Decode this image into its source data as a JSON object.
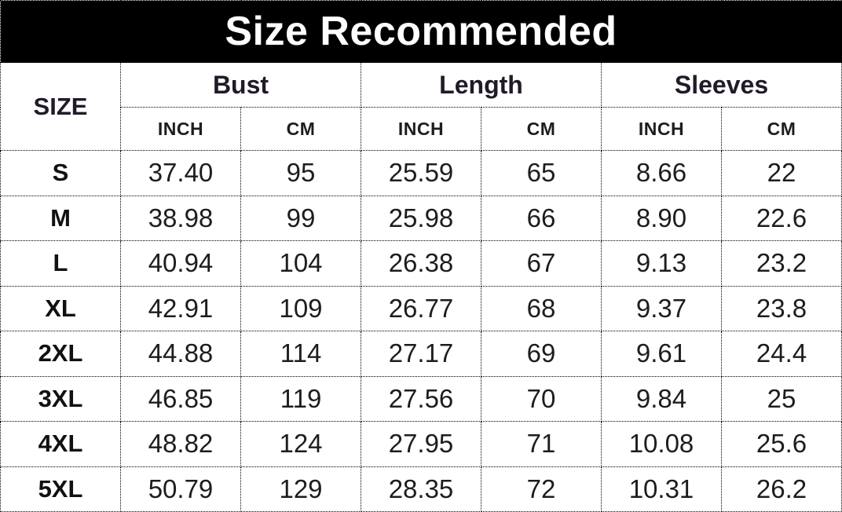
{
  "title": "Size Recommended",
  "header": {
    "size": "SIZE",
    "groups": [
      "Bust",
      "Length",
      "Sleeves"
    ],
    "units": [
      "INCH",
      "CM",
      "INCH",
      "CM",
      "INCH",
      "CM"
    ]
  },
  "chart_data": {
    "type": "table",
    "title": "Size Recommended",
    "columns": [
      "SIZE",
      "Bust INCH",
      "Bust CM",
      "Length INCH",
      "Length CM",
      "Sleeves INCH",
      "Sleeves CM"
    ],
    "rows": [
      [
        "S",
        "37.40",
        "95",
        "25.59",
        "65",
        "8.66",
        "22"
      ],
      [
        "M",
        "38.98",
        "99",
        "25.98",
        "66",
        "8.90",
        "22.6"
      ],
      [
        "L",
        "40.94",
        "104",
        "26.38",
        "67",
        "9.13",
        "23.2"
      ],
      [
        "XL",
        "42.91",
        "109",
        "26.77",
        "68",
        "9.37",
        "23.8"
      ],
      [
        "2XL",
        "44.88",
        "114",
        "27.17",
        "69",
        "9.61",
        "24.4"
      ],
      [
        "3XL",
        "46.85",
        "119",
        "27.56",
        "70",
        "9.84",
        "25"
      ],
      [
        "4XL",
        "48.82",
        "124",
        "27.95",
        "71",
        "10.08",
        "25.6"
      ],
      [
        "5XL",
        "50.79",
        "129",
        "28.35",
        "72",
        "10.31",
        "26.2"
      ]
    ]
  },
  "colors": {
    "title_bg": "#000000",
    "title_text": "#ffffff",
    "group_header_text": "#221a28",
    "cell_text": "#1d1d1d",
    "border": "#000000",
    "background": "#ffffff"
  }
}
